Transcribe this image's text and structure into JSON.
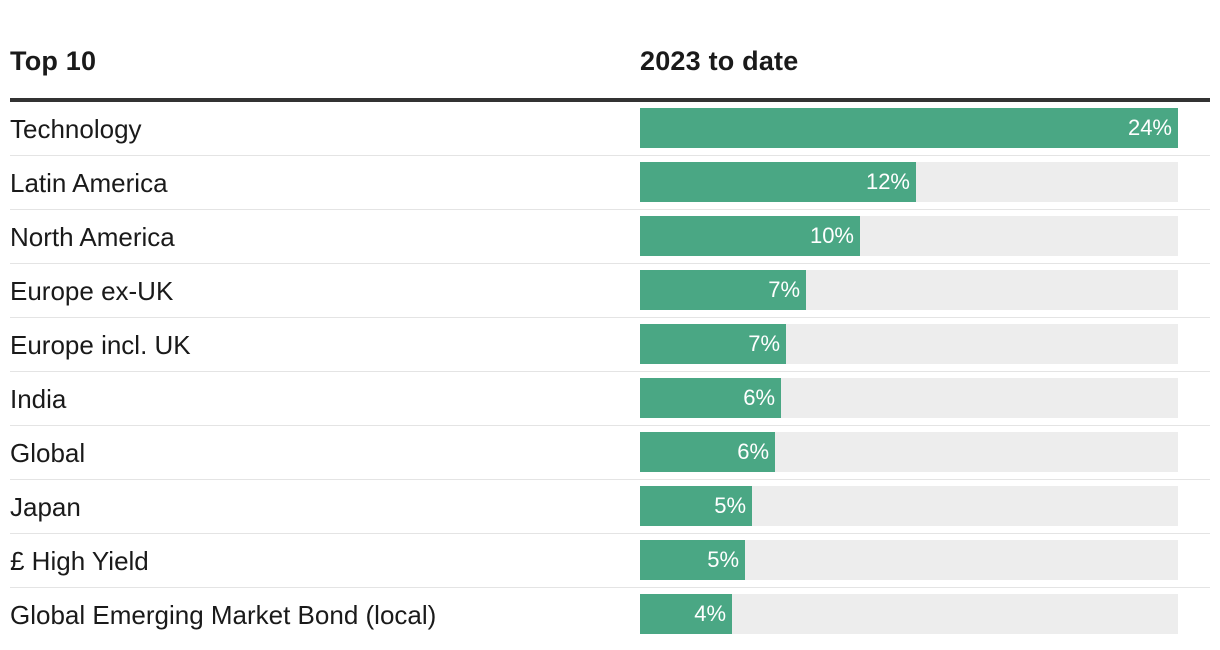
{
  "header": {
    "label_column": "Top 10",
    "value_column": "2023 to date"
  },
  "colors": {
    "bar": "#4aa784",
    "track": "#ededed"
  },
  "chart_data": {
    "type": "bar",
    "orientation": "horizontal",
    "title": "",
    "xlabel": "",
    "ylabel": "",
    "xlim": [
      0,
      24
    ],
    "grid": false,
    "categories": [
      "Technology",
      "Latin America",
      "North America",
      "Europe ex-UK",
      "Europe incl. UK",
      "India",
      "Global",
      "Japan",
      "£ High Yield",
      "Global Emerging Market Bond (local)"
    ],
    "values": [
      24,
      12.3,
      9.8,
      7.4,
      6.5,
      6.3,
      6.0,
      5.0,
      4.7,
      4.1
    ],
    "value_labels": [
      "24%",
      "12%",
      "10%",
      "7%",
      "7%",
      "6%",
      "6%",
      "5%",
      "5%",
      "4%"
    ]
  }
}
